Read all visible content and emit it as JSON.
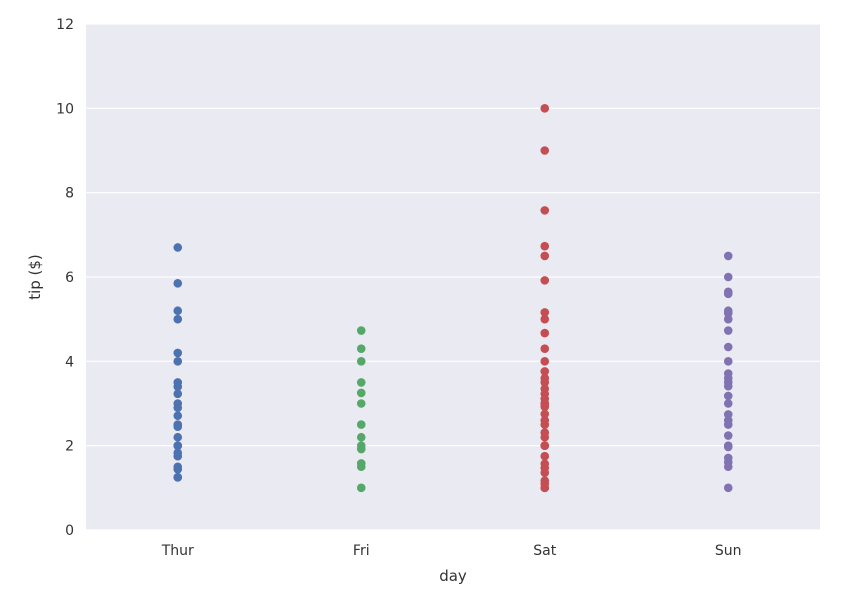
{
  "chart_data": {
    "type": "scatter",
    "xlabel": "day",
    "ylabel": "tip ($)",
    "categories": [
      "Thur",
      "Fri",
      "Sat",
      "Sun"
    ],
    "ylim": [
      0,
      12
    ],
    "yticks": [
      "0",
      "2",
      "4",
      "6",
      "8",
      "10",
      "12"
    ],
    "grid": true,
    "colors": {
      "plot_background": "#eaeaf2",
      "grid": "#ffffff"
    },
    "series": [
      {
        "category": "Thur",
        "color": "#4c72b0",
        "values": [
          6.7,
          5.85,
          5.2,
          5.0,
          4.2,
          4.0,
          3.5,
          3.4,
          3.23,
          3.0,
          2.9,
          2.71,
          2.5,
          2.45,
          2.2,
          2.0,
          2.0,
          1.83,
          1.75,
          1.5,
          1.44,
          1.25,
          1.25
        ]
      },
      {
        "category": "Fri",
        "color": "#55a868",
        "values": [
          4.73,
          4.3,
          4.0,
          3.5,
          3.25,
          3.0,
          2.5,
          2.2,
          2.0,
          1.92,
          1.58,
          1.5,
          1.0
        ]
      },
      {
        "category": "Sat",
        "color": "#c44e52",
        "values": [
          10.0,
          9.0,
          7.58,
          6.73,
          6.5,
          5.92,
          5.16,
          5.0,
          4.67,
          4.3,
          4.0,
          3.76,
          3.6,
          3.5,
          3.35,
          3.23,
          3.11,
          3.0,
          3.0,
          2.92,
          2.75,
          2.6,
          2.5,
          2.31,
          2.2,
          2.0,
          2.0,
          1.75,
          1.57,
          1.47,
          1.36,
          1.17,
          1.1,
          1.0,
          1.0
        ]
      },
      {
        "category": "Sun",
        "color": "#8172b2",
        "values": [
          6.5,
          6.0,
          5.65,
          5.6,
          5.2,
          5.14,
          5.0,
          4.73,
          4.34,
          4.0,
          3.71,
          3.6,
          3.5,
          3.41,
          3.18,
          3.0,
          2.74,
          2.6,
          2.5,
          2.24,
          2.0,
          1.97,
          1.71,
          1.61,
          1.5,
          1.0
        ]
      }
    ]
  }
}
